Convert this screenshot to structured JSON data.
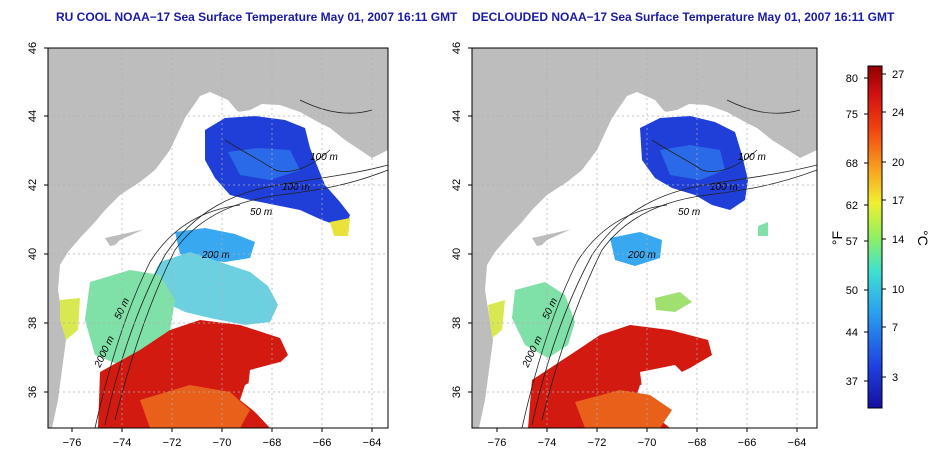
{
  "panels": [
    {
      "title": "RU COOL NOAA−17 Sea Surface Temperature May 01, 2007 16:11 GMT",
      "contour_labels": [
        "100 m",
        "100 m",
        "50 m",
        "200 m",
        "50 m",
        "2000 m"
      ]
    },
    {
      "title": "DECLOUDED NOAA−17 Sea Surface Temperature May 01, 2007 16:11 GMT",
      "contour_labels": [
        "100 m",
        "100 m",
        "50 m",
        "200 m",
        "50 m",
        "2000 m"
      ]
    }
  ],
  "axes": {
    "x_ticks": [
      "−76",
      "−74",
      "−72",
      "−70",
      "−68",
      "−66",
      "−64"
    ],
    "y_ticks": [
      "36",
      "38",
      "40",
      "42",
      "44",
      "46"
    ]
  },
  "colorbar": {
    "fahrenheit_label": "°F",
    "celsius_label": "°C",
    "fahrenheit_ticks": [
      "80",
      "75",
      "68",
      "62",
      "57",
      "50",
      "44",
      "37"
    ],
    "celsius_ticks": [
      "27",
      "24",
      "20",
      "17",
      "14",
      "10",
      "7",
      "3"
    ]
  },
  "colors": {
    "land": "#bdbdbd",
    "cloud": "#ffffff",
    "cold": "#1f3fd8",
    "cool": "#38a8f0",
    "mild": "#7fe0a8",
    "warm": "#e8e23a",
    "hot": "#d21a10",
    "hottest": "#b80a06",
    "title": "#1a1aa8"
  }
}
